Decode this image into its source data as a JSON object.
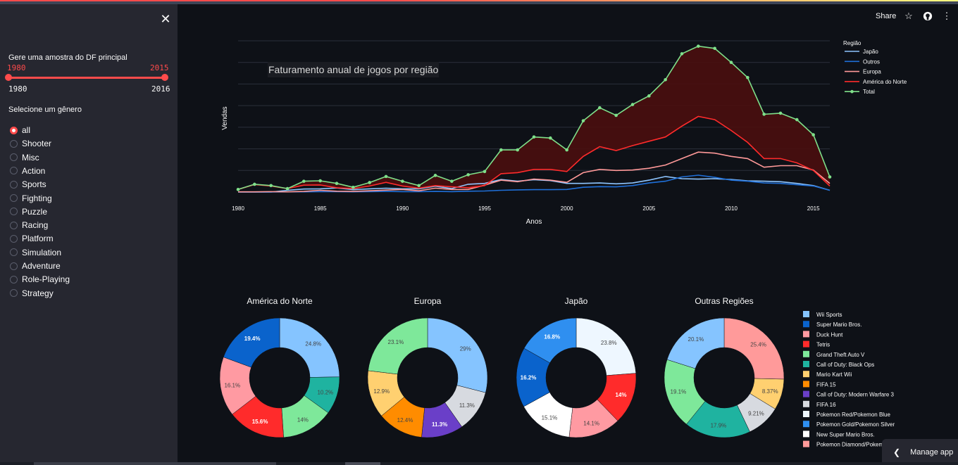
{
  "header": {
    "share_label": "Share",
    "star_icon": "star-icon",
    "github_icon": "github-icon",
    "menu_icon": "more-icon"
  },
  "sidebar": {
    "slider_label": "Gere uma amostra do DF principal",
    "slider_low": "1980",
    "slider_high": "2015",
    "slider_min": "1980",
    "slider_max": "2016",
    "radio_label": "Selecione um gênero",
    "genres": [
      "all",
      "Shooter",
      "Misc",
      "Action",
      "Sports",
      "Fighting",
      "Puzzle",
      "Racing",
      "Platform",
      "Simulation",
      "Adventure",
      "Role-Playing",
      "Strategy"
    ],
    "selected": "all"
  },
  "manage_label": "Manage app",
  "chart_data": [
    {
      "type": "line",
      "title": "Faturamento anual de jogos por região",
      "xlabel": "Anos",
      "ylabel": "Vendas",
      "xlim": [
        1980,
        2016
      ],
      "ylim": [
        0,
        700
      ],
      "x_ticks": [
        1980,
        1985,
        1990,
        1995,
        2000,
        2005,
        2010,
        2015
      ],
      "grid": true,
      "legend_title": "Região",
      "legend_position": "top-right",
      "x": [
        1980,
        1981,
        1982,
        1983,
        1984,
        1985,
        1986,
        1987,
        1988,
        1989,
        1990,
        1991,
        1992,
        1993,
        1994,
        1995,
        1996,
        1997,
        1998,
        1999,
        2000,
        2001,
        2002,
        2003,
        2004,
        2005,
        2006,
        2007,
        2008,
        2009,
        2010,
        2011,
        2012,
        2013,
        2014,
        2015,
        2016
      ],
      "series": [
        {
          "name": "Japão",
          "color": "#8ec5ff",
          "values": [
            0,
            0,
            0,
            8,
            14,
            15,
            19,
            11,
            15,
            18,
            15,
            15,
            27,
            16,
            36,
            40,
            58,
            50,
            57,
            53,
            40,
            40,
            42,
            38,
            42,
            55,
            72,
            62,
            60,
            62,
            58,
            52,
            50,
            48,
            40,
            30,
            8
          ]
        },
        {
          "name": "Outros",
          "color": "#1f6fd8",
          "values": [
            0,
            0,
            0,
            1,
            1,
            2,
            2,
            1,
            2,
            3,
            2,
            2,
            3,
            2,
            4,
            5,
            8,
            10,
            11,
            11,
            12,
            22,
            25,
            24,
            30,
            42,
            50,
            70,
            78,
            68,
            55,
            50,
            42,
            40,
            34,
            28,
            8
          ]
        },
        {
          "name": "Europa",
          "color": "#ff9999",
          "values": [
            1,
            1,
            2,
            1,
            3,
            8,
            4,
            3,
            6,
            9,
            12,
            6,
            18,
            12,
            12,
            32,
            55,
            48,
            60,
            55,
            45,
            90,
            105,
            100,
            102,
            110,
            125,
            155,
            185,
            180,
            165,
            155,
            115,
            122,
            122,
            102,
            40
          ]
        },
        {
          "name": "América do Norte",
          "color": "#ff2b2b",
          "values": [
            12,
            35,
            28,
            16,
            32,
            33,
            20,
            16,
            28,
            45,
            28,
            18,
            30,
            24,
            20,
            30,
            85,
            90,
            105,
            105,
            95,
            165,
            210,
            192,
            215,
            235,
            255,
            305,
            350,
            335,
            285,
            230,
            155,
            155,
            135,
            100,
            28
          ]
        },
        {
          "name": "Total",
          "color": "#7fe08a",
          "values": [
            12,
            36,
            30,
            16,
            50,
            52,
            40,
            22,
            44,
            72,
            50,
            30,
            77,
            50,
            80,
            95,
            195,
            195,
            255,
            250,
            195,
            330,
            390,
            355,
            405,
            445,
            520,
            640,
            675,
            665,
            600,
            530,
            360,
            365,
            335,
            265,
            70
          ]
        }
      ]
    },
    {
      "type": "pie",
      "title": "América do Norte",
      "labels": [
        "Wii Sports",
        "Call of Duty: Black Ops",
        "Grand Theft Auto V",
        "Tetris",
        "Duck Hunt",
        "Super Mario Bros."
      ],
      "values": [
        24.8,
        10.2,
        14,
        15.6,
        16.1,
        19.4
      ],
      "label_text": [
        "24.8%",
        "10.2%",
        "14%",
        "15.6%",
        "16.1%",
        "19.4%"
      ]
    },
    {
      "type": "pie",
      "title": "Europa",
      "labels": [
        "Wii Sports",
        "FIFA 16",
        "Call of Duty: Modern Warfare 3",
        "FIFA 15",
        "Mario Kart Wii",
        "Grand Theft Auto V"
      ],
      "values": [
        29,
        11.3,
        11.3,
        12.4,
        12.9,
        23.1
      ],
      "label_text": [
        "29%",
        "11.3%",
        "11.3%",
        "12.4%",
        "12.9%",
        "23.1%"
      ]
    },
    {
      "type": "pie",
      "title": "Japão",
      "labels": [
        "Pokemon Red/Pokemon Blue",
        "Tetris",
        "Duck Hunt",
        "New Super Mario Bros.",
        "Super Mario Bros.",
        "Pokemon Gold/Pokemon Silver"
      ],
      "values": [
        23.8,
        14,
        14.1,
        15.1,
        16.2,
        16.8
      ],
      "label_text": [
        "23.8%",
        "14%",
        "14.1%",
        "15.1%",
        "16.2%",
        "16.8%"
      ]
    },
    {
      "type": "pie",
      "title": "Outras Regiões",
      "labels": [
        "Pokemon Diamond/Pokemon Pearl",
        "Mario Kart Wii",
        "FIFA 16",
        "Call of Duty: Black Ops",
        "Grand Theft Auto V",
        "Wii Sports"
      ],
      "values": [
        25.4,
        8.37,
        9.21,
        17.9,
        19.1,
        20.1
      ],
      "label_text": [
        "25.4%",
        "8.37%",
        "9.21%",
        "17.9%",
        "19.1%",
        "20.1%"
      ]
    }
  ],
  "pie_legend": [
    {
      "name": "Wii Sports",
      "color": "#85c4ff"
    },
    {
      "name": "Super Mario Bros.",
      "color": "#0a63cc"
    },
    {
      "name": "Duck Hunt",
      "color": "#ff9aa2"
    },
    {
      "name": "Tetris",
      "color": "#ff2b2b"
    },
    {
      "name": "Grand Theft Auto V",
      "color": "#7ee89a"
    },
    {
      "name": "Call of Duty: Black Ops",
      "color": "#1fb3a0"
    },
    {
      "name": "Mario Kart Wii",
      "color": "#ffd070"
    },
    {
      "name": "FIFA 15",
      "color": "#ff8c00"
    },
    {
      "name": "Call of Duty: Modern Warfare 3",
      "color": "#6a3fc8"
    },
    {
      "name": "FIFA 16",
      "color": "#d7dae0"
    },
    {
      "name": "Pokemon Red/Pokemon Blue",
      "color": "#eef7ff"
    },
    {
      "name": "Pokemon Gold/Pokemon Silver",
      "color": "#2f8ff0"
    },
    {
      "name": "New Super Mario Bros.",
      "color": "#ffffff"
    },
    {
      "name": "Pokemon Diamond/Pokemon Pearl",
      "color": "#ff9a9a"
    }
  ]
}
